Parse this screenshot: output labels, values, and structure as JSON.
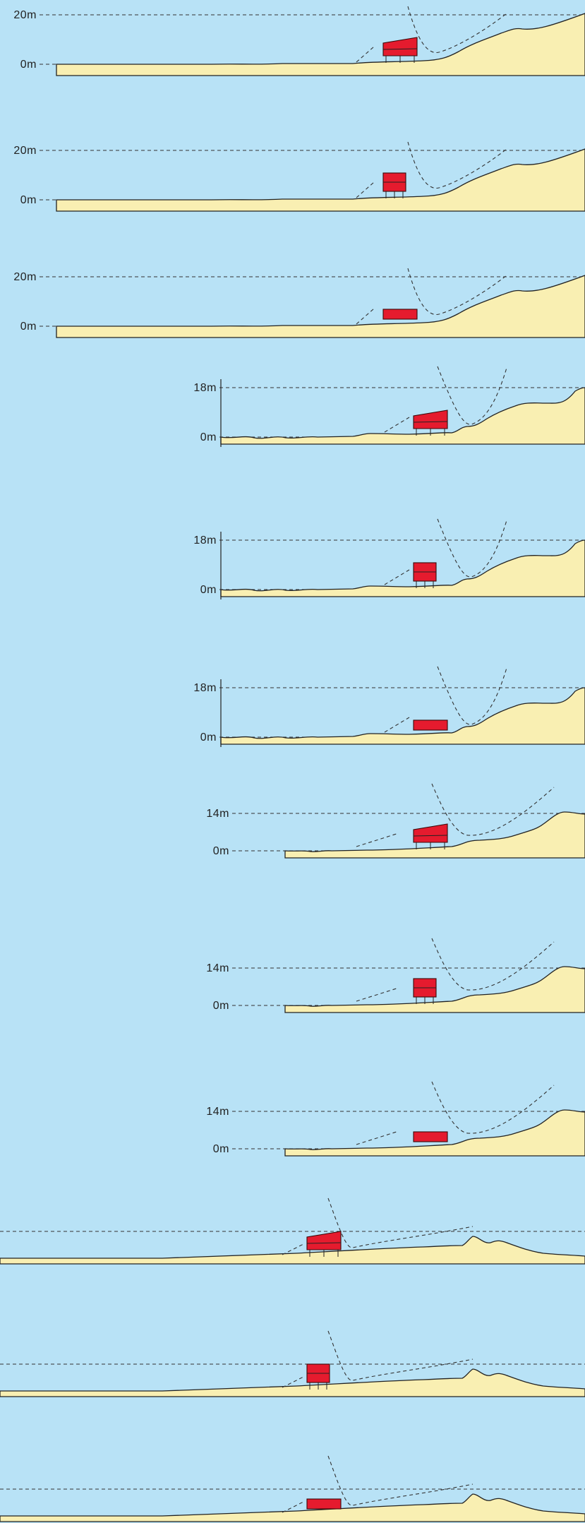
{
  "colors": {
    "sky": "#b8e2f6",
    "ground": "#f9efb2",
    "building": "#e51b2e",
    "line": "#222222"
  },
  "panels": [
    {
      "top_label": "20m",
      "bottom_label": "0m",
      "variant": "A",
      "building": "tall-slanted"
    },
    {
      "top_label": "20m",
      "bottom_label": "0m",
      "variant": "A",
      "building": "tower"
    },
    {
      "top_label": "20m",
      "bottom_label": "0m",
      "variant": "A",
      "building": "low"
    },
    {
      "top_label": "18m",
      "bottom_label": "0m",
      "variant": "B",
      "building": "tall-slanted"
    },
    {
      "top_label": "18m",
      "bottom_label": "0m",
      "variant": "B",
      "building": "tower"
    },
    {
      "top_label": "18m",
      "bottom_label": "0m",
      "variant": "B",
      "building": "low"
    },
    {
      "top_label": "14m",
      "bottom_label": "0m",
      "variant": "C",
      "building": "tall-slanted"
    },
    {
      "top_label": "14m",
      "bottom_label": "0m",
      "variant": "C",
      "building": "tower"
    },
    {
      "top_label": "14m",
      "bottom_label": "0m",
      "variant": "C",
      "building": "low"
    },
    {
      "top_label": "",
      "bottom_label": "",
      "variant": "D",
      "building": "tall-slanted"
    },
    {
      "top_label": "",
      "bottom_label": "",
      "variant": "D",
      "building": "tower"
    },
    {
      "top_label": "",
      "bottom_label": "",
      "variant": "D",
      "building": "low"
    }
  ]
}
